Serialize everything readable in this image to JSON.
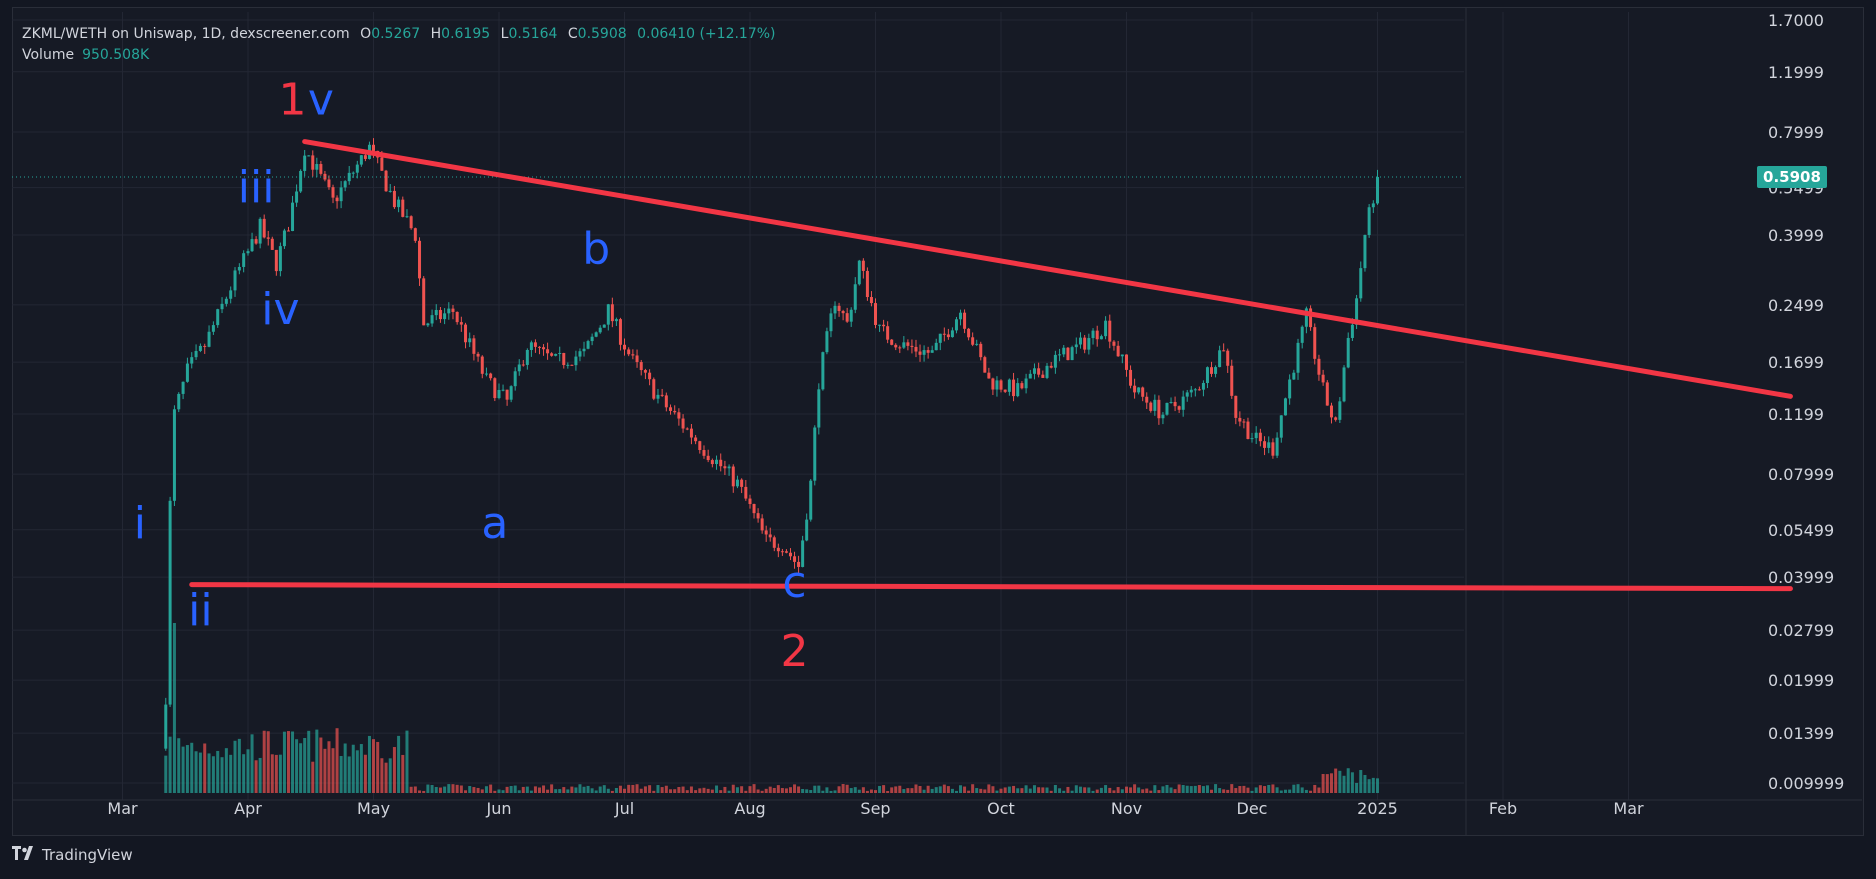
{
  "header": {
    "symbol": "ZKML/WETH on Uniswap, 1D, dexscreener.com",
    "open_key": "O",
    "open": "0.5267",
    "high_key": "H",
    "high": "0.6195",
    "low_key": "L",
    "low": "0.5164",
    "close_key": "C",
    "close": "0.5908",
    "change": "0.06410 (+12.17%)",
    "volume_label": "Volume",
    "volume": "950.508K"
  },
  "footer": {
    "brand": "TradingView"
  },
  "colors": {
    "up": "#26a69a",
    "down": "#ef5350",
    "trendline": "#f23645",
    "wave_blue": "#2962ff",
    "wave_red": "#f23645",
    "bg": "#161a25",
    "grid": "#232734"
  },
  "chart_data": {
    "type": "candlestick",
    "title": "",
    "scale": "log",
    "y_ticks": [
      "1.7000",
      "1.1999",
      "0.7999",
      "0.5499",
      "0.3999",
      "0.2499",
      "0.1699",
      "0.1199",
      "0.07999",
      "0.05499",
      "0.03999",
      "0.02799",
      "0.01999",
      "0.01399",
      "0.009999"
    ],
    "x_ticks": [
      "Mar",
      "Apr",
      "May",
      "Jun",
      "Jul",
      "Aug",
      "Sep",
      "Oct",
      "Nov",
      "Dec",
      "2025",
      "Feb",
      "Mar"
    ],
    "last_price": "0.5908",
    "grid": true,
    "legend": "top-left",
    "price_path": [
      {
        "date": "2024-02-11",
        "close": 0.018
      },
      {
        "date": "2024-02-12",
        "close": 0.065
      },
      {
        "date": "2024-02-13",
        "close": 0.12
      },
      {
        "date": "2024-02-16",
        "close": 0.16
      },
      {
        "date": "2024-02-20",
        "close": 0.19
      },
      {
        "date": "2024-02-27",
        "close": 0.3
      },
      {
        "date": "2024-03-04",
        "close": 0.42
      },
      {
        "date": "2024-03-08",
        "close": 0.33
      },
      {
        "date": "2024-03-11",
        "close": 0.43
      },
      {
        "date": "2024-03-15",
        "close": 0.72
      },
      {
        "date": "2024-03-22",
        "close": 0.5
      },
      {
        "date": "2024-03-31",
        "close": 0.72
      },
      {
        "date": "2024-04-06",
        "close": 0.5
      },
      {
        "date": "2024-04-11",
        "close": 0.4
      },
      {
        "date": "2024-04-13",
        "close": 0.22
      },
      {
        "date": "2024-04-20",
        "close": 0.24
      },
      {
        "date": "2024-04-28",
        "close": 0.15
      },
      {
        "date": "2024-05-03",
        "close": 0.13
      },
      {
        "date": "2024-05-08",
        "close": 0.19
      },
      {
        "date": "2024-05-15",
        "close": 0.17
      },
      {
        "date": "2024-05-22",
        "close": 0.18
      },
      {
        "date": "2024-05-28",
        "close": 0.24
      },
      {
        "date": "2024-06-03",
        "close": 0.17
      },
      {
        "date": "2024-06-10",
        "close": 0.13
      },
      {
        "date": "2024-06-20",
        "close": 0.095
      },
      {
        "date": "2024-06-28",
        "close": 0.075
      },
      {
        "date": "2024-07-05",
        "close": 0.051
      },
      {
        "date": "2024-07-09",
        "close": 0.05
      },
      {
        "date": "2024-07-13",
        "close": 0.043
      },
      {
        "date": "2024-07-16",
        "close": 0.075
      },
      {
        "date": "2024-07-18",
        "close": 0.15
      },
      {
        "date": "2024-07-22",
        "close": 0.26
      },
      {
        "date": "2024-07-25",
        "close": 0.22
      },
      {
        "date": "2024-07-28",
        "close": 0.33
      },
      {
        "date": "2024-08-02",
        "close": 0.21
      },
      {
        "date": "2024-08-08",
        "close": 0.19
      },
      {
        "date": "2024-08-15",
        "close": 0.18
      },
      {
        "date": "2024-08-22",
        "close": 0.24
      },
      {
        "date": "2024-08-29",
        "close": 0.15
      },
      {
        "date": "2024-09-05",
        "close": 0.14
      },
      {
        "date": "2024-09-13",
        "close": 0.17
      },
      {
        "date": "2024-09-20",
        "close": 0.19
      },
      {
        "date": "2024-09-26",
        "close": 0.22
      },
      {
        "date": "2024-10-03",
        "close": 0.14
      },
      {
        "date": "2024-10-10",
        "close": 0.12
      },
      {
        "date": "2024-10-18",
        "close": 0.14
      },
      {
        "date": "2024-10-25",
        "close": 0.19
      },
      {
        "date": "2024-10-28",
        "close": 0.12
      },
      {
        "date": "2024-11-02",
        "close": 0.1
      },
      {
        "date": "2024-11-06",
        "close": 0.095
      },
      {
        "date": "2024-11-10",
        "close": 0.15
      },
      {
        "date": "2024-11-14",
        "close": 0.23
      },
      {
        "date": "2024-11-18",
        "close": 0.14
      },
      {
        "date": "2024-11-21",
        "close": 0.11
      },
      {
        "date": "2024-11-24",
        "close": 0.2
      },
      {
        "date": "2024-11-26",
        "close": 0.26
      },
      {
        "date": "2024-11-28",
        "close": 0.4
      },
      {
        "date": "2024-12-01",
        "close": 0.5908
      }
    ],
    "trendlines": [
      {
        "points": [
          {
            "date": "2024-03-15",
            "price": 0.75
          },
          {
            "date": "2025-03-10",
            "price": 0.135
          }
        ]
      },
      {
        "points": [
          {
            "date": "2024-02-17",
            "price": 0.038
          },
          {
            "date": "2025-03-10",
            "price": 0.037
          }
        ]
      }
    ],
    "annotations": [
      {
        "text": "1",
        "color": "red",
        "date": "2024-03-12",
        "price": 0.9
      },
      {
        "text": "v",
        "color": "blue",
        "date": "2024-03-19",
        "price": 0.9
      },
      {
        "text": "iii",
        "color": "blue",
        "date": "2024-03-03",
        "price": 0.5
      },
      {
        "text": "iv",
        "color": "blue",
        "date": "2024-03-09",
        "price": 0.22
      },
      {
        "text": "i",
        "color": "blue",
        "date": "2024-02-05",
        "price": 0.052
      },
      {
        "text": "ii",
        "color": "blue",
        "date": "2024-02-19",
        "price": 0.029
      },
      {
        "text": "a",
        "color": "blue",
        "date": "2024-04-30",
        "price": 0.052
      },
      {
        "text": "b",
        "color": "blue",
        "date": "2024-05-25",
        "price": 0.33
      },
      {
        "text": "c",
        "color": "blue",
        "date": "2024-07-12",
        "price": 0.035
      },
      {
        "text": "2",
        "color": "red",
        "date": "2024-07-12",
        "price": 0.022
      }
    ]
  }
}
